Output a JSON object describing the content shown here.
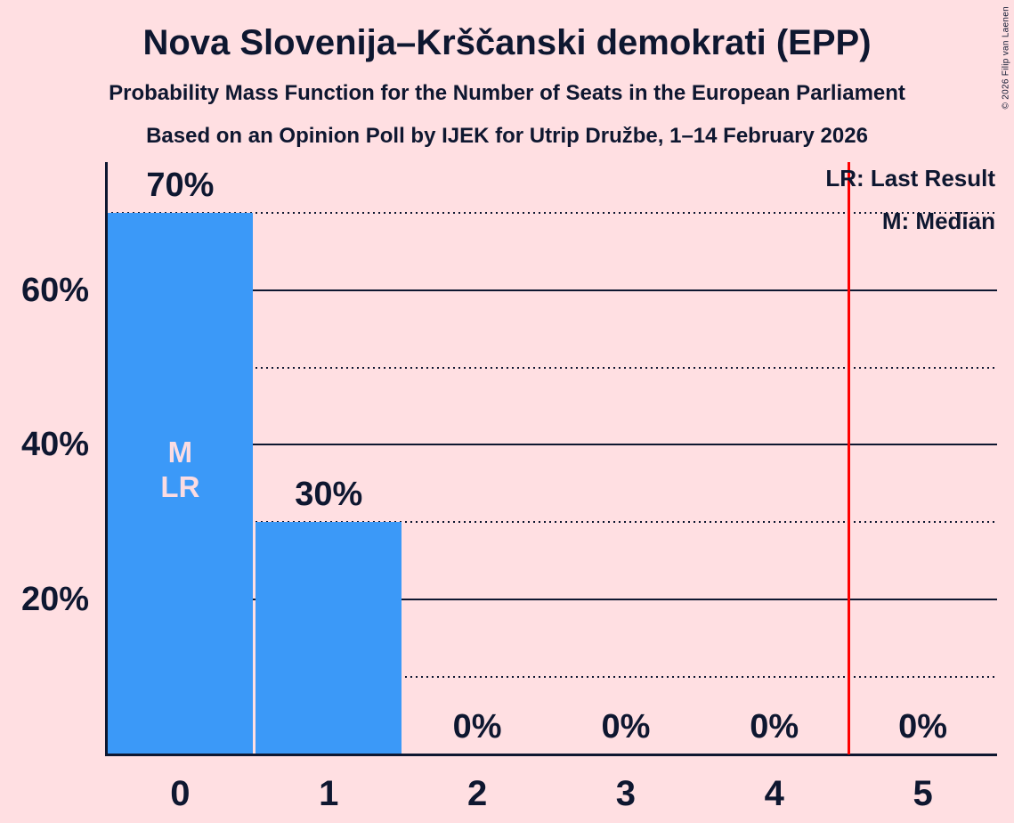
{
  "title": "Nova Slovenija–Krščanski demokrati (EPP)",
  "subtitles": [
    "Probability Mass Function for the Number of Seats in the European Parliament",
    "Based on an Opinion Poll by IJEK for Utrip Družbe, 1–14 February 2026"
  ],
  "copyright": "© 2026 Filip van Laenen",
  "legend": {
    "last_result": "LR: Last Result",
    "median": "M: Median"
  },
  "colors": {
    "background": "#ffdfe2",
    "bar": "#3b99f8",
    "text": "#0e1730",
    "bar_annotation": "#fbdce2",
    "majority_line": "#fe0000"
  },
  "chart_data": {
    "type": "bar",
    "title": "Probability Mass Function for the Number of Seats in the European Parliament",
    "categories": [
      "0",
      "1",
      "2",
      "3",
      "4",
      "5"
    ],
    "values": [
      70,
      30,
      0,
      0,
      0,
      0
    ],
    "value_labels": [
      "70%",
      "30%",
      "0%",
      "0%",
      "0%",
      "0%"
    ],
    "y_axis": {
      "range": [
        0,
        76
      ],
      "major_ticks": [
        20,
        40,
        60
      ],
      "major_tick_labels": [
        "20%",
        "40%",
        "60%"
      ],
      "minor_dotted_ticks": [
        10,
        30,
        50,
        70
      ],
      "grid": true
    },
    "median": 0,
    "last_result": 0,
    "bar_annotations": [
      {
        "category": "0",
        "lines": [
          "M",
          "LR"
        ]
      }
    ],
    "majority_line_at": 4.5,
    "legend_position": "top-right"
  }
}
